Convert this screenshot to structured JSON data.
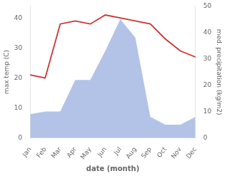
{
  "chart_data": {
    "type": "line",
    "xlabel": "date (month)",
    "ylabel": "max temp (C)",
    "y2label": "med. precipitation (kg/m2)",
    "categories": [
      "Jan",
      "Feb",
      "Mar",
      "Apr",
      "May",
      "Jun",
      "Jul",
      "Aug",
      "Sep",
      "Oct",
      "Nov",
      "Dec"
    ],
    "series": [
      {
        "type": "area",
        "color": "#b3c3e8",
        "axis": "y2",
        "values": [
          9,
          10,
          10,
          22,
          22,
          33,
          45,
          38,
          8,
          5,
          5,
          8
        ]
      },
      {
        "type": "line",
        "color": "#cc3333",
        "values": [
          21,
          20,
          38,
          39,
          38,
          41,
          40,
          39,
          38,
          33,
          29,
          27
        ]
      }
    ],
    "ylim": [
      0,
      44
    ],
    "yticks": [
      0,
      10,
      20,
      30,
      40
    ],
    "y2lim": [
      0,
      50
    ],
    "y2ticks": [
      0,
      10,
      20,
      30,
      40,
      50
    ],
    "grid": false
  }
}
